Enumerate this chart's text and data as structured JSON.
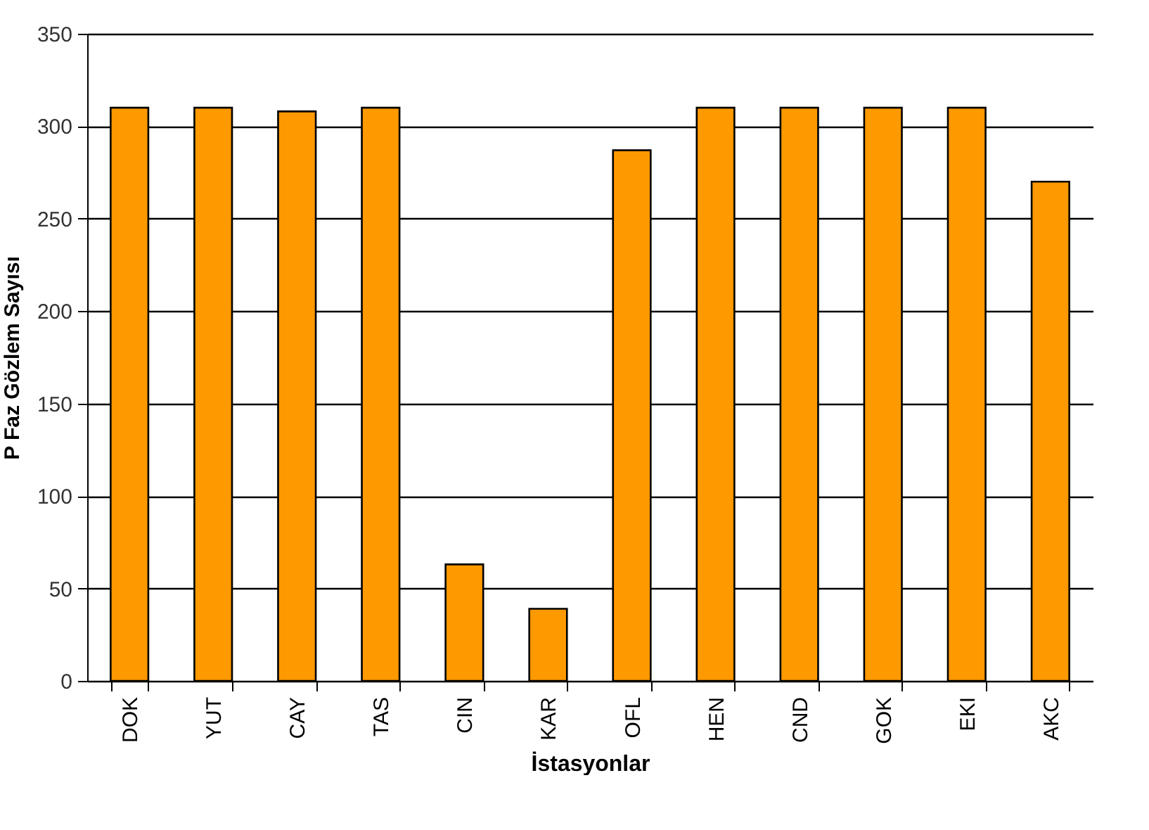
{
  "chart_data": {
    "type": "bar",
    "xlabel": "İstasyonlar",
    "ylabel": "P Faz Gözlem Sayısı",
    "categories": [
      "DOK",
      "YUT",
      "CAY",
      "TAS",
      "CIN",
      "KAR",
      "OFL",
      "HEN",
      "CND",
      "GOK",
      "EKI",
      "AKC"
    ],
    "values": [
      310,
      310,
      308,
      310,
      63,
      39,
      287,
      310,
      310,
      310,
      310,
      270
    ],
    "color": "#ff9900",
    "ylim": [
      0,
      350
    ],
    "yticks": [
      0,
      50,
      100,
      150,
      200,
      250,
      300,
      350
    ],
    "grid": "y"
  }
}
